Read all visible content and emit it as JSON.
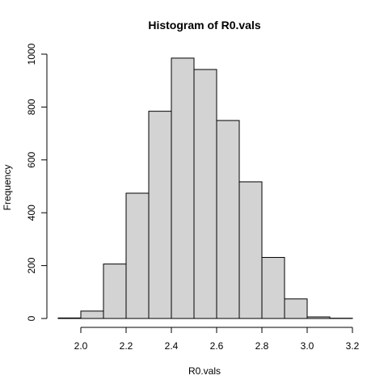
{
  "chart_data": {
    "type": "bar",
    "title": "Histogram of R0.vals",
    "xlabel": "R0.vals",
    "ylabel": "Frequency",
    "bins": [
      {
        "x0": 1.9,
        "x1": 2.0,
        "value": 2
      },
      {
        "x0": 2.0,
        "x1": 2.1,
        "value": 28
      },
      {
        "x0": 2.1,
        "x1": 2.2,
        "value": 206
      },
      {
        "x0": 2.2,
        "x1": 2.3,
        "value": 474
      },
      {
        "x0": 2.3,
        "x1": 2.4,
        "value": 784
      },
      {
        "x0": 2.4,
        "x1": 2.5,
        "value": 985
      },
      {
        "x0": 2.5,
        "x1": 2.6,
        "value": 942
      },
      {
        "x0": 2.6,
        "x1": 2.7,
        "value": 749
      },
      {
        "x0": 2.7,
        "x1": 2.8,
        "value": 517
      },
      {
        "x0": 2.8,
        "x1": 2.9,
        "value": 231
      },
      {
        "x0": 2.9,
        "x1": 3.0,
        "value": 74
      },
      {
        "x0": 3.0,
        "x1": 3.1,
        "value": 6
      },
      {
        "x0": 3.1,
        "x1": 3.2,
        "value": 1
      }
    ],
    "xticks": [
      2.0,
      2.2,
      2.4,
      2.6,
      2.8,
      3.0,
      3.2
    ],
    "xtick_labels": [
      "2.0",
      "2.2",
      "2.4",
      "2.6",
      "2.8",
      "3.0",
      "3.2"
    ],
    "yticks": [
      0,
      200,
      400,
      600,
      800,
      1000
    ],
    "ytick_labels": [
      "0",
      "200",
      "400",
      "600",
      "800",
      "1000"
    ],
    "xlim": [
      1.9,
      3.2
    ],
    "ylim": [
      0,
      1000
    ],
    "grid": false,
    "colors": {
      "bar_fill": "#d3d3d3",
      "bar_stroke": "#000000"
    }
  }
}
